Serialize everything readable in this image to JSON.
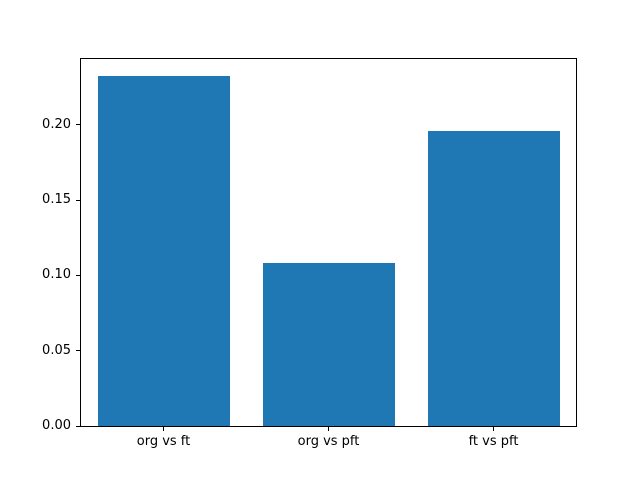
{
  "chart_data": {
    "type": "bar",
    "title": "",
    "xlabel": "",
    "ylabel": "",
    "categories": [
      "org vs ft",
      "org vs pft",
      "ft vs pft"
    ],
    "values": [
      0.232,
      0.108,
      0.196
    ],
    "ylim": [
      0,
      0.2436
    ],
    "yticks": [
      0.0,
      0.05,
      0.1,
      0.15,
      0.2
    ],
    "ytick_labels": [
      "0.00",
      "0.05",
      "0.10",
      "0.15",
      "0.20"
    ],
    "bar_color": "#1f77b4",
    "background_color": "#ffffff",
    "grid": false,
    "legend": false,
    "bar_relative_width": 0.8
  }
}
